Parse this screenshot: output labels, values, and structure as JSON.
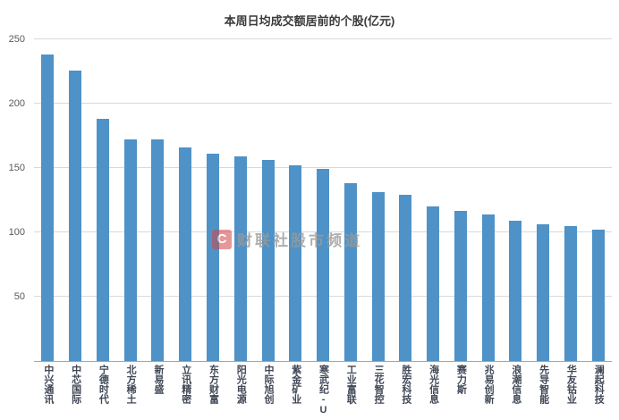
{
  "title": "本周日均成交额居前的个股(亿元)",
  "watermark": {
    "icon": "C",
    "text": "财联社股市频道"
  },
  "chart_data": {
    "type": "bar",
    "title": "本周日均成交额居前的个股(亿元)",
    "categories": [
      "中兴通讯",
      "中芯国际",
      "宁德时代",
      "北方稀土",
      "新易盛",
      "立讯精密",
      "东方财富",
      "阳光电源",
      "中际旭创",
      "紫金矿业",
      "寒武纪-U",
      "工业富联",
      "三花智控",
      "胜宏科技",
      "海光信息",
      "赛力斯",
      "兆易创新",
      "浪潮信息",
      "先导智能",
      "华友钴业",
      "澜起科技"
    ],
    "values": [
      238,
      226,
      188,
      172,
      172,
      166,
      161,
      159,
      156,
      152,
      149,
      138,
      131,
      129,
      120,
      117,
      114,
      109,
      106,
      105,
      102
    ],
    "xlabel": "",
    "ylabel": "",
    "ylim": [
      0,
      250
    ],
    "yticks": [
      50,
      100,
      150,
      200,
      250
    ],
    "grid": true,
    "legend": "none",
    "bar_color": "#4e92c7"
  }
}
